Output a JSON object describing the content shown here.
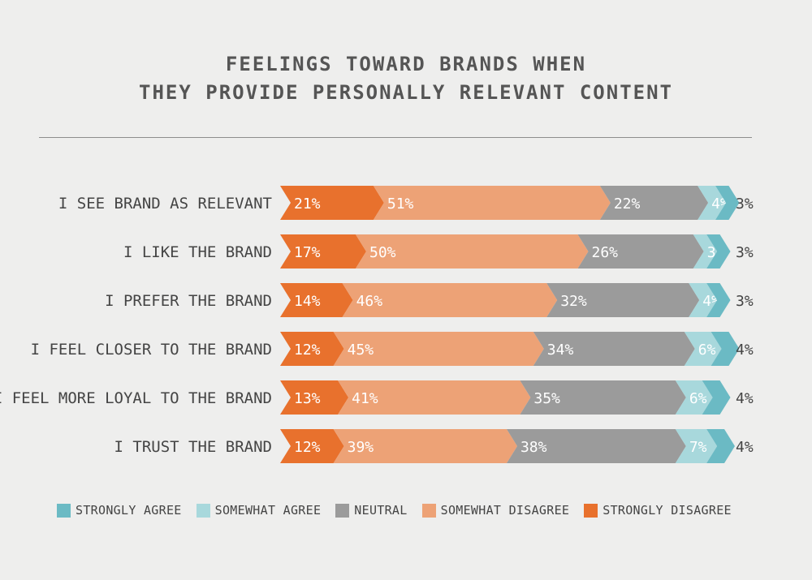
{
  "chart_data": {
    "type": "bar",
    "stacked": true,
    "orientation": "horizontal",
    "title_lines": [
      "FEELINGS TOWARD BRANDS WHEN",
      "THEY PROVIDE PERSONALLY RELEVANT CONTENT"
    ],
    "categories": [
      "I SEE BRAND AS RELEVANT",
      "I LIKE THE BRAND",
      "I PREFER THE BRAND",
      "I FEEL CLOSER TO THE BRAND",
      "I FEEL MORE LOYAL TO THE BRAND",
      "I TRUST THE BRAND"
    ],
    "series": [
      {
        "name": "STRONGLY DISAGREE",
        "color": "#e8712d",
        "values": [
          21,
          17,
          14,
          12,
          13,
          12
        ]
      },
      {
        "name": "SOMEWHAT DISAGREE",
        "color": "#eda276",
        "values": [
          51,
          50,
          46,
          45,
          41,
          39
        ]
      },
      {
        "name": "NEUTRAL",
        "color": "#9b9b9b",
        "values": [
          22,
          26,
          32,
          34,
          35,
          38
        ]
      },
      {
        "name": "SOMEWHAT AGREE",
        "color": "#a8d8dc",
        "values": [
          4,
          3,
          4,
          6,
          6,
          7
        ]
      },
      {
        "name": "STRONGLY AGREE",
        "color": "#6bbac4",
        "values": [
          3,
          3,
          3,
          4,
          4,
          4
        ]
      }
    ],
    "legend_order": [
      "STRONGLY AGREE",
      "SOMEWHAT AGREE",
      "NEUTRAL",
      "SOMEWHAT DISAGREE",
      "STRONGLY DISAGREE"
    ],
    "legend_position": "bottom",
    "value_suffix": "%",
    "grid": false
  }
}
